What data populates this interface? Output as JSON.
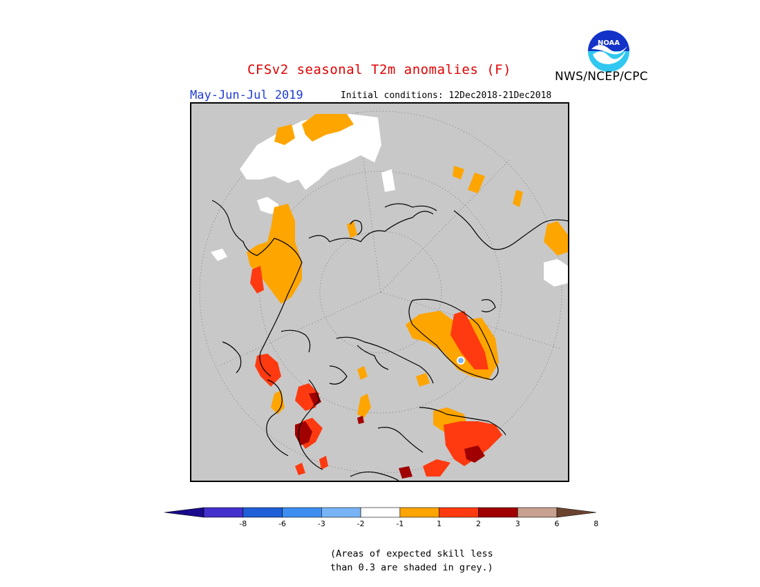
{
  "title": "CFSv2 seasonal T2m anomalies (F)",
  "period": "May-Jun-Jul 2019",
  "initial_conditions": "Initial conditions: 12Dec2018-21Dec2018",
  "agency": "NWS/NCEP/CPC",
  "logo": {
    "text": "NOAA",
    "icon": "noaa-logo-icon"
  },
  "legend": {
    "colors": [
      "#1a0a8c",
      "#4430cc",
      "#1f5fd8",
      "#3d8ef0",
      "#78b4f5",
      "#ffffff",
      "#ffa500",
      "#ff3a10",
      "#a00000",
      "#c8a090",
      "#6b4430"
    ],
    "tick_labels": [
      "-8",
      "-6",
      "-3",
      "-2",
      "-1",
      "1",
      "2",
      "3",
      "6",
      "8"
    ]
  },
  "note_lines": [
    "(Areas of expected skill less",
    "than 0.3 are shaded in grey.)"
  ],
  "colors": {
    "grey": "#c8c8c8",
    "title": "#e00000",
    "period": "#1f3bd6"
  }
}
